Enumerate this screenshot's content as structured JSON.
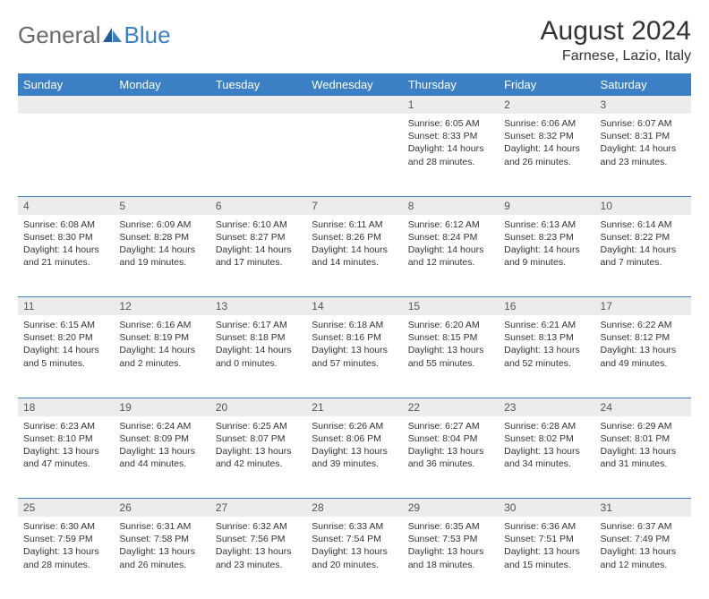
{
  "logo": {
    "part1": "General",
    "part2": "Blue"
  },
  "title": "August 2024",
  "location": "Farnese, Lazio, Italy",
  "colors": {
    "header_bg": "#3b7fc4",
    "header_text": "#ffffff",
    "daynum_bg": "#ececec",
    "divider": "#3b7fc4",
    "text": "#333333"
  },
  "day_headers": [
    "Sunday",
    "Monday",
    "Tuesday",
    "Wednesday",
    "Thursday",
    "Friday",
    "Saturday"
  ],
  "weeks": [
    [
      {
        "num": "",
        "text": ""
      },
      {
        "num": "",
        "text": ""
      },
      {
        "num": "",
        "text": ""
      },
      {
        "num": "",
        "text": ""
      },
      {
        "num": "1",
        "text": "Sunrise: 6:05 AM\nSunset: 8:33 PM\nDaylight: 14 hours and 28 minutes."
      },
      {
        "num": "2",
        "text": "Sunrise: 6:06 AM\nSunset: 8:32 PM\nDaylight: 14 hours and 26 minutes."
      },
      {
        "num": "3",
        "text": "Sunrise: 6:07 AM\nSunset: 8:31 PM\nDaylight: 14 hours and 23 minutes."
      }
    ],
    [
      {
        "num": "4",
        "text": "Sunrise: 6:08 AM\nSunset: 8:30 PM\nDaylight: 14 hours and 21 minutes."
      },
      {
        "num": "5",
        "text": "Sunrise: 6:09 AM\nSunset: 8:28 PM\nDaylight: 14 hours and 19 minutes."
      },
      {
        "num": "6",
        "text": "Sunrise: 6:10 AM\nSunset: 8:27 PM\nDaylight: 14 hours and 17 minutes."
      },
      {
        "num": "7",
        "text": "Sunrise: 6:11 AM\nSunset: 8:26 PM\nDaylight: 14 hours and 14 minutes."
      },
      {
        "num": "8",
        "text": "Sunrise: 6:12 AM\nSunset: 8:24 PM\nDaylight: 14 hours and 12 minutes."
      },
      {
        "num": "9",
        "text": "Sunrise: 6:13 AM\nSunset: 8:23 PM\nDaylight: 14 hours and 9 minutes."
      },
      {
        "num": "10",
        "text": "Sunrise: 6:14 AM\nSunset: 8:22 PM\nDaylight: 14 hours and 7 minutes."
      }
    ],
    [
      {
        "num": "11",
        "text": "Sunrise: 6:15 AM\nSunset: 8:20 PM\nDaylight: 14 hours and 5 minutes."
      },
      {
        "num": "12",
        "text": "Sunrise: 6:16 AM\nSunset: 8:19 PM\nDaylight: 14 hours and 2 minutes."
      },
      {
        "num": "13",
        "text": "Sunrise: 6:17 AM\nSunset: 8:18 PM\nDaylight: 14 hours and 0 minutes."
      },
      {
        "num": "14",
        "text": "Sunrise: 6:18 AM\nSunset: 8:16 PM\nDaylight: 13 hours and 57 minutes."
      },
      {
        "num": "15",
        "text": "Sunrise: 6:20 AM\nSunset: 8:15 PM\nDaylight: 13 hours and 55 minutes."
      },
      {
        "num": "16",
        "text": "Sunrise: 6:21 AM\nSunset: 8:13 PM\nDaylight: 13 hours and 52 minutes."
      },
      {
        "num": "17",
        "text": "Sunrise: 6:22 AM\nSunset: 8:12 PM\nDaylight: 13 hours and 49 minutes."
      }
    ],
    [
      {
        "num": "18",
        "text": "Sunrise: 6:23 AM\nSunset: 8:10 PM\nDaylight: 13 hours and 47 minutes."
      },
      {
        "num": "19",
        "text": "Sunrise: 6:24 AM\nSunset: 8:09 PM\nDaylight: 13 hours and 44 minutes."
      },
      {
        "num": "20",
        "text": "Sunrise: 6:25 AM\nSunset: 8:07 PM\nDaylight: 13 hours and 42 minutes."
      },
      {
        "num": "21",
        "text": "Sunrise: 6:26 AM\nSunset: 8:06 PM\nDaylight: 13 hours and 39 minutes."
      },
      {
        "num": "22",
        "text": "Sunrise: 6:27 AM\nSunset: 8:04 PM\nDaylight: 13 hours and 36 minutes."
      },
      {
        "num": "23",
        "text": "Sunrise: 6:28 AM\nSunset: 8:02 PM\nDaylight: 13 hours and 34 minutes."
      },
      {
        "num": "24",
        "text": "Sunrise: 6:29 AM\nSunset: 8:01 PM\nDaylight: 13 hours and 31 minutes."
      }
    ],
    [
      {
        "num": "25",
        "text": "Sunrise: 6:30 AM\nSunset: 7:59 PM\nDaylight: 13 hours and 28 minutes."
      },
      {
        "num": "26",
        "text": "Sunrise: 6:31 AM\nSunset: 7:58 PM\nDaylight: 13 hours and 26 minutes."
      },
      {
        "num": "27",
        "text": "Sunrise: 6:32 AM\nSunset: 7:56 PM\nDaylight: 13 hours and 23 minutes."
      },
      {
        "num": "28",
        "text": "Sunrise: 6:33 AM\nSunset: 7:54 PM\nDaylight: 13 hours and 20 minutes."
      },
      {
        "num": "29",
        "text": "Sunrise: 6:35 AM\nSunset: 7:53 PM\nDaylight: 13 hours and 18 minutes."
      },
      {
        "num": "30",
        "text": "Sunrise: 6:36 AM\nSunset: 7:51 PM\nDaylight: 13 hours and 15 minutes."
      },
      {
        "num": "31",
        "text": "Sunrise: 6:37 AM\nSunset: 7:49 PM\nDaylight: 13 hours and 12 minutes."
      }
    ]
  ]
}
